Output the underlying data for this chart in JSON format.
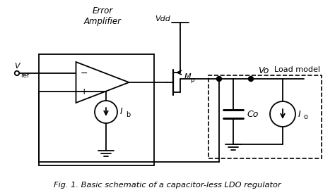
{
  "title": "Fig. 1. Basic schematic of a capacitor-less LDO regulator",
  "bg_color": "#ffffff",
  "line_color": "#000000",
  "labels": {
    "error_amp": "Error\nAmplifier",
    "vref_main": "V",
    "vref_sub": "ref",
    "vdd": "Vdd",
    "mp_main": "M",
    "mp_sub": "p",
    "vo": "Vo",
    "load_model": "Load model",
    "ib_main": "I",
    "ib_sub": "b",
    "co": "Co",
    "io_main": "I",
    "io_sub": "o"
  }
}
